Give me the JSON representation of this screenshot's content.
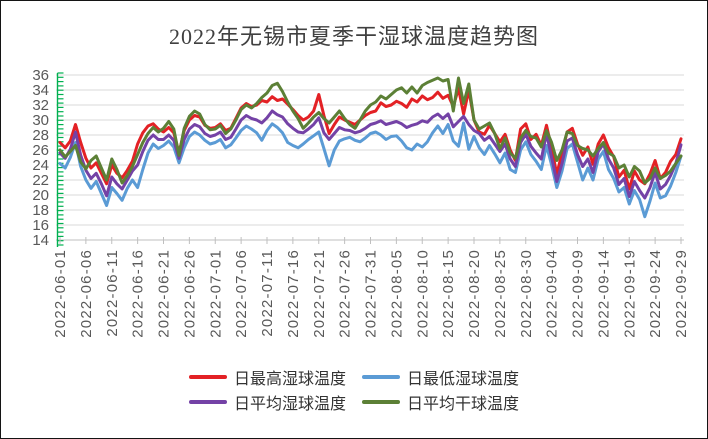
{
  "chart_data": {
    "type": "line",
    "title": "2022年无锡市夏季干湿球温度趋势图",
    "xlabel": "",
    "ylabel": "",
    "ylim": [
      14,
      36
    ],
    "y_tick_step": 2,
    "grid": true,
    "legend_position": "bottom",
    "x_start": "2022-06-01",
    "x_end": "2022-09-29",
    "n_points": 121,
    "x_label_every": 5,
    "x_tick_labels": [
      "2022-06-01",
      "2022-06-06",
      "2022-06-11",
      "2022-06-16",
      "2022-06-21",
      "2022-06-26",
      "2022-07-01",
      "2022-07-06",
      "2022-07-11",
      "2022-07-16",
      "2022-07-21",
      "2022-07-26",
      "2022-07-31",
      "2022-08-05",
      "2022-08-10",
      "2022-08-15",
      "2022-08-20",
      "2022-08-25",
      "2022-08-30",
      "2022-09-04",
      "2022-09-09",
      "2022-09-14",
      "2022-09-19",
      "2022-09-24",
      "2022-09-29"
    ],
    "colors": {
      "grid": "#d9d9d9",
      "axis_line": "#bfbfbf",
      "axis_text": "#595959",
      "ruler_ticks": "#00b050",
      "title_text": "#404040",
      "legend_text": "#333333"
    },
    "series": [
      {
        "id": "daily-max-wet-bulb",
        "name": "日最高湿球温度",
        "color": "#e32125",
        "values": [
          27.0,
          26.3,
          27.2,
          29.4,
          27.0,
          24.9,
          23.6,
          24.3,
          22.9,
          21.5,
          24.0,
          22.9,
          22.3,
          23.3,
          24.5,
          26.8,
          28.3,
          29.2,
          29.5,
          28.8,
          28.4,
          29.0,
          28.3,
          25.6,
          28.6,
          30.0,
          30.6,
          30.4,
          29.3,
          28.9,
          29.0,
          29.5,
          28.6,
          28.9,
          30.2,
          31.6,
          32.2,
          31.8,
          32.0,
          32.6,
          32.4,
          33.1,
          32.6,
          32.8,
          32.1,
          31.4,
          30.6,
          30.0,
          30.4,
          31.2,
          33.4,
          30.6,
          28.2,
          29.4,
          30.4,
          30.0,
          29.7,
          29.4,
          30.0,
          30.6,
          31.0,
          31.2,
          32.3,
          31.8,
          32.0,
          32.5,
          32.2,
          31.7,
          32.8,
          32.4,
          33.2,
          32.7,
          33.0,
          33.7,
          32.9,
          33.3,
          31.8,
          34.2,
          30.8,
          34.0,
          30.0,
          28.4,
          28.1,
          29.3,
          28.2,
          27.1,
          28.1,
          26.0,
          24.6,
          28.8,
          29.5,
          27.4,
          28.1,
          26.6,
          29.3,
          26.2,
          22.8,
          25.6,
          28.4,
          28.9,
          26.8,
          25.3,
          26.4,
          24.1,
          26.8,
          28.0,
          26.3,
          25.1,
          22.4,
          23.3,
          20.8,
          23.2,
          22.0,
          21.5,
          22.8,
          24.6,
          22.2,
          23.0,
          24.5,
          25.4,
          27.5
        ]
      },
      {
        "id": "daily-min-wet-bulb",
        "name": "日最低湿球温度",
        "color": "#5b9bd5",
        "values": [
          24.2,
          23.6,
          25.0,
          27.0,
          23.8,
          22.0,
          20.9,
          21.8,
          20.2,
          18.6,
          21.0,
          20.2,
          19.3,
          20.9,
          22.0,
          21.0,
          23.4,
          25.6,
          26.8,
          26.2,
          26.6,
          27.2,
          26.4,
          24.3,
          26.3,
          27.8,
          28.4,
          28.0,
          27.3,
          26.8,
          27.0,
          27.4,
          26.3,
          26.7,
          27.6,
          28.6,
          29.2,
          28.8,
          28.3,
          27.3,
          28.6,
          29.5,
          29.0,
          28.3,
          27.0,
          26.6,
          26.3,
          26.8,
          27.4,
          27.9,
          28.4,
          26.2,
          23.9,
          26.0,
          27.2,
          27.5,
          27.7,
          27.3,
          27.1,
          27.6,
          28.2,
          28.4,
          28.0,
          27.4,
          27.8,
          27.9,
          27.2,
          26.3,
          26.0,
          26.8,
          26.4,
          27.1,
          28.3,
          29.2,
          28.2,
          29.4,
          27.2,
          26.5,
          29.6,
          26.1,
          27.8,
          26.3,
          25.4,
          26.6,
          25.5,
          24.3,
          25.6,
          23.4,
          23.0,
          26.0,
          27.1,
          25.4,
          24.5,
          23.4,
          26.6,
          24.0,
          21.0,
          23.2,
          26.2,
          26.8,
          24.4,
          22.0,
          23.6,
          22.0,
          24.8,
          25.8,
          23.4,
          22.2,
          20.4,
          21.0,
          18.8,
          20.6,
          19.4,
          17.1,
          19.2,
          21.6,
          19.6,
          19.9,
          21.2,
          23.0,
          25.2
        ]
      },
      {
        "id": "daily-avg-wet-bulb",
        "name": "日平均湿球温度",
        "color": "#7442a6",
        "values": [
          25.6,
          24.9,
          26.1,
          28.4,
          25.3,
          23.3,
          22.2,
          22.9,
          21.5,
          19.9,
          22.4,
          21.5,
          20.8,
          22.0,
          23.2,
          24.0,
          25.8,
          27.3,
          28.0,
          27.4,
          27.4,
          28.0,
          27.3,
          24.9,
          27.4,
          28.8,
          29.4,
          29.1,
          28.2,
          27.8,
          28.0,
          28.4,
          27.4,
          27.7,
          28.8,
          30.0,
          30.6,
          30.2,
          30.0,
          29.6,
          30.3,
          31.2,
          30.7,
          30.4,
          29.5,
          28.9,
          28.4,
          28.3,
          28.8,
          29.4,
          30.3,
          28.3,
          27.4,
          28.2,
          29.0,
          28.7,
          28.6,
          28.3,
          28.5,
          28.9,
          29.4,
          29.6,
          29.9,
          29.4,
          29.6,
          29.8,
          29.5,
          29.0,
          29.3,
          29.5,
          29.9,
          29.7,
          30.4,
          30.8,
          30.2,
          30.8,
          29.1,
          29.8,
          30.5,
          29.4,
          28.6,
          28.2,
          27.3,
          27.8,
          26.8,
          25.8,
          26.8,
          24.8,
          23.8,
          27.0,
          28.1,
          26.5,
          25.6,
          24.8,
          28.2,
          25.0,
          21.8,
          24.2,
          27.2,
          27.6,
          25.4,
          23.8,
          24.8,
          23.0,
          25.8,
          26.8,
          24.8,
          23.6,
          21.4,
          22.2,
          19.8,
          21.8,
          20.6,
          19.6,
          21.0,
          23.0,
          20.8,
          21.4,
          22.6,
          24.2,
          26.7
        ]
      },
      {
        "id": "daily-avg-dry-bulb",
        "name": "日平均干球温度",
        "color": "#5c8036",
        "values": [
          26.0,
          25.1,
          25.8,
          26.6,
          24.4,
          23.5,
          24.6,
          25.2,
          23.6,
          22.0,
          24.8,
          23.4,
          21.6,
          22.6,
          23.8,
          25.4,
          27.0,
          28.2,
          29.0,
          28.4,
          28.9,
          29.8,
          28.8,
          25.3,
          28.9,
          30.5,
          31.2,
          30.8,
          29.4,
          28.7,
          28.8,
          29.3,
          28.2,
          28.8,
          30.0,
          31.4,
          32.0,
          31.6,
          32.2,
          33.0,
          33.6,
          34.6,
          34.9,
          33.8,
          32.4,
          31.2,
          30.2,
          28.9,
          29.6,
          30.4,
          31.0,
          30.2,
          29.6,
          30.4,
          31.2,
          30.2,
          29.4,
          28.9,
          30.0,
          31.2,
          32.0,
          32.4,
          33.2,
          32.8,
          33.4,
          34.0,
          34.3,
          33.6,
          34.4,
          33.6,
          34.6,
          35.0,
          35.3,
          35.6,
          35.2,
          35.4,
          31.2,
          35.6,
          32.2,
          34.8,
          30.0,
          28.8,
          29.2,
          29.6,
          28.2,
          26.2,
          27.6,
          25.6,
          24.9,
          27.6,
          28.6,
          27.8,
          27.6,
          26.4,
          28.6,
          27.0,
          24.6,
          26.0,
          28.4,
          28.2,
          26.6,
          26.2,
          26.0,
          25.2,
          26.2,
          27.0,
          25.6,
          25.2,
          23.6,
          24.0,
          22.4,
          23.8,
          23.2,
          21.6,
          22.2,
          23.6,
          22.2,
          22.6,
          23.2,
          24.2,
          25.2
        ]
      }
    ]
  }
}
